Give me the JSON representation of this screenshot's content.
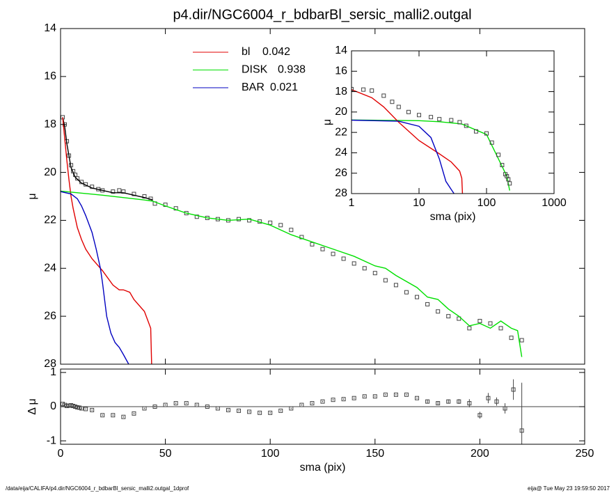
{
  "chart_data": [
    {
      "type": "line",
      "title": "p4.dir/NGC6004_r_bdbarBl_sersic_malli2.outgal",
      "ylabel": "μ",
      "xlim": [
        0,
        250
      ],
      "xticks": [
        0,
        50,
        100,
        150,
        200,
        250
      ],
      "xtick_labels": false,
      "ylim": [
        28,
        14
      ],
      "yticks": [
        14,
        16,
        18,
        20,
        22,
        24,
        26,
        28
      ],
      "series": [
        {
          "marker": "square",
          "color": "#444444",
          "x": [
            1,
            2,
            3,
            4,
            5,
            6,
            7,
            8,
            10,
            12,
            15,
            18,
            20,
            25,
            28,
            30,
            35,
            40,
            43,
            45,
            50,
            55,
            60,
            65,
            70,
            75,
            80,
            85,
            90,
            95,
            100,
            105,
            110,
            115,
            120,
            125,
            130,
            135,
            140,
            145,
            150,
            155,
            160,
            165,
            170,
            175,
            180,
            185,
            190,
            195,
            200,
            205,
            210,
            215,
            220
          ],
          "values": [
            17.7,
            18.0,
            18.7,
            19.3,
            19.7,
            19.95,
            20.1,
            20.25,
            20.4,
            20.5,
            20.6,
            20.7,
            20.75,
            20.8,
            20.75,
            20.8,
            20.9,
            21.0,
            21.1,
            21.3,
            21.35,
            21.5,
            21.7,
            21.85,
            21.9,
            21.95,
            22.0,
            21.95,
            22.0,
            22.05,
            22.1,
            22.2,
            22.4,
            22.7,
            23.0,
            23.2,
            23.4,
            23.6,
            23.8,
            24.0,
            24.2,
            24.5,
            24.7,
            25.0,
            25.2,
            25.5,
            25.8,
            26.0,
            26.1,
            26.5,
            26.2,
            26.3,
            26.5,
            26.9,
            27.0
          ]
        },
        {
          "color": "#000000",
          "x": [
            1,
            2,
            3,
            5,
            7,
            10,
            15,
            20,
            25,
            30,
            35,
            40,
            44
          ],
          "values": [
            17.7,
            18.1,
            18.8,
            19.8,
            20.2,
            20.45,
            20.65,
            20.75,
            20.85,
            20.85,
            20.95,
            21.05,
            21.15
          ]
        },
        {
          "name": "bl",
          "fraction": 0.042,
          "color": "#e00000",
          "x": [
            1,
            2,
            3,
            4,
            5,
            6,
            8,
            10,
            12,
            15,
            18,
            20,
            25,
            28,
            30,
            33,
            35,
            40,
            43,
            43.5
          ],
          "values": [
            17.7,
            18.6,
            19.5,
            20.3,
            21.0,
            21.5,
            22.3,
            22.8,
            23.2,
            23.6,
            23.9,
            24.1,
            24.7,
            24.9,
            24.9,
            25.0,
            25.3,
            25.8,
            26.5,
            28.2
          ]
        },
        {
          "name": "DISK",
          "fraction": 0.938,
          "color": "#00e000",
          "x": [
            0,
            20,
            40,
            44,
            50,
            60,
            70,
            80,
            90,
            100,
            110,
            120,
            130,
            140,
            150,
            155,
            160,
            170,
            175,
            180,
            185,
            190,
            195,
            200,
            205,
            210,
            215,
            218,
            220
          ],
          "values": [
            20.78,
            20.95,
            21.15,
            21.2,
            21.4,
            21.7,
            21.9,
            22.0,
            21.95,
            22.2,
            22.6,
            22.9,
            23.2,
            23.5,
            23.9,
            24.0,
            24.3,
            24.8,
            25.2,
            25.3,
            25.7,
            26.0,
            26.4,
            26.3,
            26.5,
            26.2,
            26.5,
            26.6,
            27.7
          ]
        },
        {
          "name": "BAR",
          "fraction": 0.021,
          "color": "#0000c0",
          "x": [
            0,
            5,
            8,
            10,
            12,
            15,
            17,
            19,
            20,
            21,
            22,
            24,
            26,
            28,
            30,
            32.5
          ],
          "values": [
            20.8,
            20.9,
            21.1,
            21.4,
            21.8,
            22.5,
            23.2,
            24.0,
            24.6,
            25.3,
            26.0,
            26.7,
            27.1,
            27.3,
            27.6,
            28.0
          ]
        }
      ]
    },
    {
      "type": "line",
      "log_x": true,
      "xlabel": "sma (pix)",
      "ylabel": "μ",
      "xlim": [
        1,
        1000
      ],
      "xticks": [
        1,
        10,
        100,
        1000
      ],
      "ylim": [
        28,
        14
      ],
      "yticks": [
        14,
        16,
        18,
        20,
        22,
        24,
        26,
        28
      ],
      "series": [
        {
          "color": "#00e000",
          "x": [
            1,
            10,
            20,
            40,
            44,
            100,
            200,
            220
          ],
          "values": [
            20.78,
            20.85,
            20.95,
            21.15,
            21.2,
            22.2,
            26.3,
            27.7
          ]
        },
        {
          "color": "#e00000",
          "x": [
            1,
            2,
            3,
            5,
            10,
            20,
            30,
            40,
            43,
            44
          ],
          "values": [
            17.8,
            18.6,
            19.5,
            21.0,
            22.8,
            24.1,
            24.9,
            25.8,
            26.5,
            28.0
          ]
        },
        {
          "color": "#0000c0",
          "x": [
            1,
            5,
            10,
            15,
            20,
            25,
            30,
            33
          ],
          "values": [
            20.8,
            20.9,
            21.4,
            22.5,
            24.6,
            26.8,
            27.6,
            28.0
          ]
        },
        {
          "marker": "square",
          "color": "#444444",
          "x": [
            1,
            1.5,
            2,
            3,
            4,
            5,
            7,
            10,
            15,
            20,
            30,
            40,
            50,
            70,
            100,
            120,
            150,
            170,
            190,
            200,
            210,
            220
          ],
          "values": [
            17.75,
            17.8,
            17.9,
            18.4,
            19.0,
            19.5,
            20.0,
            20.3,
            20.5,
            20.7,
            20.8,
            21.0,
            21.35,
            21.9,
            22.1,
            23.0,
            24.2,
            25.2,
            26.1,
            26.3,
            26.6,
            27.0
          ]
        }
      ]
    },
    {
      "type": "scatter",
      "xlabel": "sma (pix)",
      "ylabel": "Δ μ",
      "hline": 0,
      "xlim": [
        0,
        250
      ],
      "xticks": [
        0,
        50,
        100,
        150,
        200,
        250
      ],
      "ylim": [
        -1.1,
        1.1
      ],
      "yticks": [
        -1,
        0,
        1
      ],
      "series": [
        {
          "marker": "square",
          "color": "#444444",
          "x": [
            1,
            2,
            3,
            4,
            5,
            6,
            7,
            8,
            9,
            10,
            12,
            15,
            20,
            25,
            30,
            35,
            40,
            45,
            50,
            55,
            60,
            65,
            70,
            75,
            80,
            85,
            90,
            95,
            100,
            105,
            110,
            115,
            120,
            125,
            130,
            135,
            140,
            145,
            150,
            155,
            160,
            165,
            170,
            175,
            180,
            185,
            190,
            195,
            200,
            204,
            208,
            212,
            216,
            220
          ],
          "values": [
            0.08,
            0.05,
            0.02,
            0.03,
            0.04,
            0.02,
            0.0,
            -0.02,
            -0.03,
            -0.05,
            -0.07,
            -0.1,
            -0.25,
            -0.25,
            -0.3,
            -0.2,
            -0.05,
            0.0,
            0.05,
            0.1,
            0.1,
            0.05,
            0.0,
            -0.05,
            -0.1,
            -0.12,
            -0.15,
            -0.18,
            -0.18,
            -0.12,
            -0.05,
            0.05,
            0.1,
            0.15,
            0.2,
            0.22,
            0.25,
            0.3,
            0.3,
            0.35,
            0.35,
            0.35,
            0.25,
            0.15,
            0.1,
            0.15,
            0.15,
            0.1,
            -0.25,
            0.25,
            0.15,
            -0.05,
            0.5,
            -0.7
          ],
          "errors": [
            0.02,
            0.02,
            0.02,
            0.02,
            0.02,
            0.02,
            0.02,
            0.02,
            0.02,
            0.02,
            0.02,
            0.02,
            0.02,
            0.02,
            0.02,
            0.02,
            0.02,
            0.02,
            0.02,
            0.02,
            0.02,
            0.02,
            0.02,
            0.02,
            0.02,
            0.02,
            0.02,
            0.02,
            0.02,
            0.02,
            0.02,
            0.02,
            0.02,
            0.02,
            0.02,
            0.02,
            0.02,
            0.02,
            0.02,
            0.02,
            0.02,
            0.02,
            0.02,
            0.05,
            0.05,
            0.06,
            0.07,
            0.12,
            0.1,
            0.15,
            0.12,
            0.15,
            0.3,
            1.4
          ]
        }
      ]
    }
  ],
  "footer": {
    "left": "/data/eija/CALIFA/p4.dir/NGC6004_r_bdbarBl_sersic_malli2.outgal_1dprof",
    "right": "eija@  Tue May 23 19:59:50 2017"
  }
}
